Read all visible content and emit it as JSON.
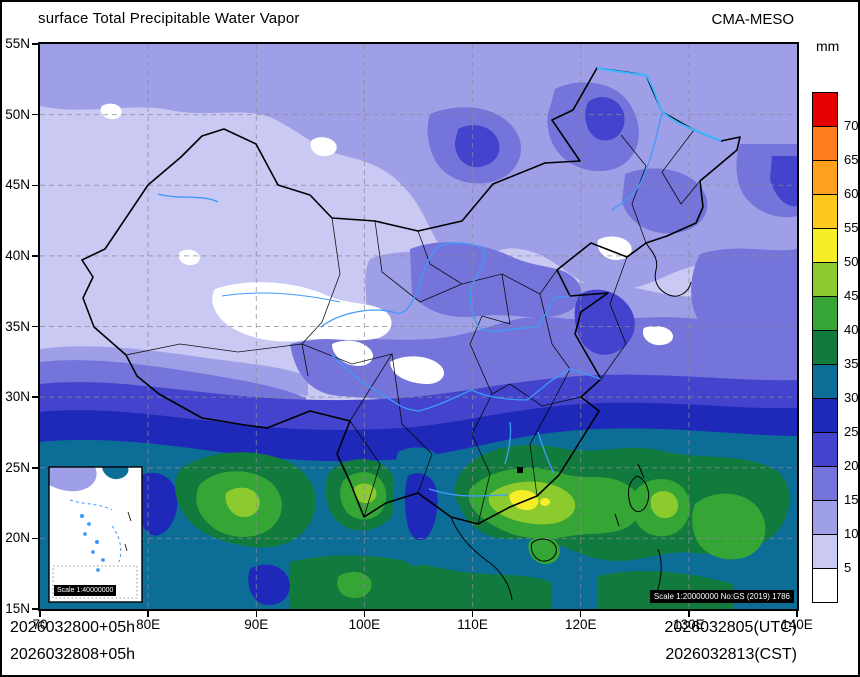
{
  "header": {
    "title": "surface Total Precipitable Water Vapor",
    "model": "CMA-MESO"
  },
  "axes": {
    "x_ticks": [
      "70",
      "80E",
      "90E",
      "100E",
      "110E",
      "120E",
      "130E",
      "140E"
    ],
    "y_ticks": [
      "55N",
      "50N",
      "45N",
      "40N",
      "35N",
      "30N",
      "25N",
      "20N",
      "15N"
    ]
  },
  "colorbar": {
    "unit": "mm",
    "labels_top_to_bottom": [
      "70",
      "65",
      "60",
      "55",
      "50",
      "45",
      "40",
      "35",
      "30",
      "25",
      "20",
      "15",
      "10",
      "5"
    ],
    "cells_top_to_bottom": [
      "#e60000",
      "#ff7d1e",
      "#ffa01e",
      "#ffc81e",
      "#f5ee28",
      "#8ccb2e",
      "#35a535",
      "#117a3d",
      "#0c6e96",
      "#1e28b9",
      "#4343cd",
      "#7474da",
      "#9f9fe8",
      "#c9c9f4",
      "#ffffff"
    ]
  },
  "badges": {
    "inset_scale": "Scale 1:40000000",
    "map_scale": "Scale 1:20000000 No:GS (2019) 1786"
  },
  "footer": {
    "left_line1": "2026032800+05h",
    "left_line2": "2026032808+05h",
    "right_line1": "2026032805(UTC)",
    "right_line2": "2026032813(CST)"
  }
}
